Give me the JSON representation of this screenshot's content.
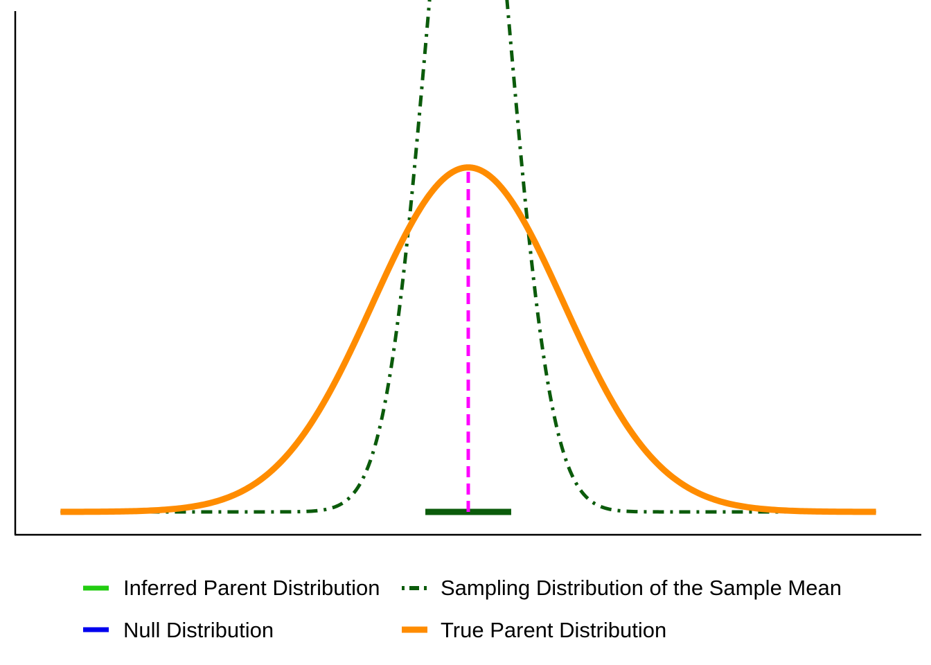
{
  "chart_data": {
    "type": "line",
    "title": "",
    "xlabel": "",
    "ylabel": "",
    "grid": false,
    "axes_ticks": false,
    "legend_position": "bottom",
    "xlim": [
      -4.75,
      4.75
    ],
    "ylim": [
      -0.0265,
      0.58
    ],
    "mean": 0,
    "series": [
      {
        "key": "inferred",
        "name": "Inferred Parent Distribution",
        "color": "#22cc11",
        "style": "solid",
        "mean": 0.0,
        "sd": 1.0
      },
      {
        "key": "sampling",
        "name": "Sampling Distribution of the Sample Mean",
        "color": "#0b5b0b",
        "style": "dotdash",
        "mean": 0.0,
        "sd": 0.4395
      },
      {
        "key": "null",
        "name": "Null Distribution",
        "color": "#0000ee",
        "style": "solid",
        "mean": -0.02,
        "sd": 1.0
      },
      {
        "key": "true",
        "name": "True Parent Distribution",
        "color": "#ff8c00",
        "style": "solid-thick",
        "mean": 0.0,
        "sd": 1.0
      }
    ],
    "annotations": {
      "mean_line": {
        "x": 0,
        "color": "#ff00ff",
        "style": "dashed",
        "to_series": "true"
      },
      "interval": {
        "x_low": -0.45,
        "x_high": 0.45,
        "y": 0,
        "color": "#0b5b0b"
      }
    }
  }
}
